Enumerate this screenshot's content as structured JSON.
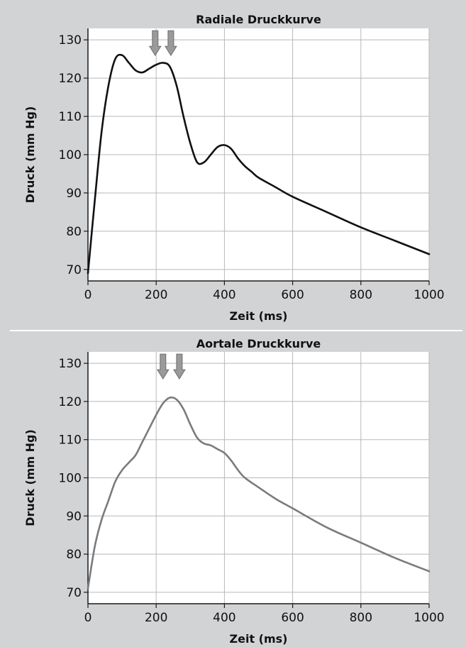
{
  "colors": {
    "background": "#d2d3d5",
    "plot_area": "#ffffff",
    "grid": "#b8b8b8",
    "axis": "#1a1a1a",
    "arrow_fill": "#9a9a9a",
    "arrow_stroke": "#6e6e6e",
    "separator": "#ffffff"
  },
  "chart_data": [
    {
      "type": "line",
      "title": "Radiale Druckkurve",
      "xlabel": "Zeit (ms)",
      "ylabel": "Druck (mm Hg)",
      "xlim": [
        0,
        1000
      ],
      "ylim": [
        67,
        133
      ],
      "xticks": [
        0,
        200,
        400,
        600,
        800,
        1000
      ],
      "yticks": [
        70,
        80,
        90,
        100,
        110,
        120,
        130
      ],
      "grid": true,
      "line_color": "#111111",
      "series": [
        {
          "x": [
            0,
            20,
            40,
            60,
            80,
            100,
            120,
            140,
            160,
            180,
            200,
            220,
            240,
            260,
            280,
            300,
            320,
            340,
            360,
            380,
            400,
            420,
            440,
            460,
            480,
            500,
            550,
            600,
            700,
            800,
            900,
            1000
          ],
          "values": [
            69,
            88,
            106,
            118,
            125,
            126,
            124,
            122,
            121.5,
            122.5,
            123.5,
            124,
            123,
            118,
            110,
            103,
            98,
            98,
            100,
            102,
            102.5,
            101.5,
            99,
            97,
            95.5,
            94,
            91.5,
            89,
            85,
            81,
            77.5,
            74
          ]
        }
      ],
      "annotations": [
        {
          "type": "arrow-down",
          "x": 197,
          "y": 130
        },
        {
          "type": "arrow-down",
          "x": 243,
          "y": 130
        }
      ]
    },
    {
      "type": "line",
      "title": "Aortale Druckkurve",
      "xlabel": "Zeit (ms)",
      "ylabel": "Druck (mm Hg)",
      "xlim": [
        0,
        1000
      ],
      "ylim": [
        67,
        133
      ],
      "xticks": [
        0,
        200,
        400,
        600,
        800,
        1000
      ],
      "yticks": [
        70,
        80,
        90,
        100,
        110,
        120,
        130
      ],
      "grid": true,
      "line_color": "#7b7b7b",
      "series": [
        {
          "x": [
            0,
            20,
            40,
            60,
            80,
            100,
            120,
            140,
            160,
            180,
            200,
            220,
            240,
            260,
            280,
            300,
            320,
            340,
            360,
            380,
            400,
            420,
            440,
            460,
            500,
            550,
            600,
            700,
            800,
            900,
            1000
          ],
          "values": [
            71,
            82,
            89,
            94,
            99,
            102,
            104,
            106,
            109.5,
            113,
            116.5,
            119.5,
            121,
            120.5,
            118,
            114,
            110.5,
            109,
            108.5,
            107.5,
            106.5,
            104.5,
            102,
            100,
            97.5,
            94.5,
            92,
            87,
            83,
            79,
            75.5
          ]
        }
      ],
      "annotations": [
        {
          "type": "arrow-down",
          "x": 220,
          "y": 130
        },
        {
          "type": "arrow-down",
          "x": 268,
          "y": 130
        }
      ]
    }
  ]
}
